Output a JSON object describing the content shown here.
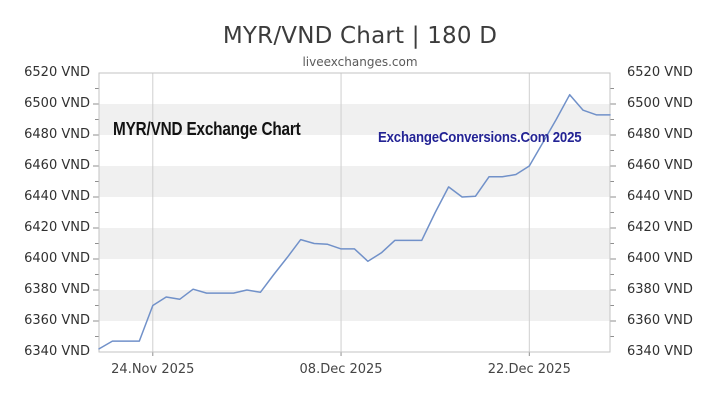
{
  "header": {
    "title": "MYR/VND Chart | 180 D",
    "subtitle": "liveexchanges.com"
  },
  "watermarks": {
    "left": "MYR/VND Exchange Chart",
    "right": "ExchangeConversions.Com 2025"
  },
  "colors": {
    "line": "#7191c9",
    "stripe": "#f0f0f0",
    "grid": "#cfcfcf",
    "border": "#c3c3c3",
    "tick": "#8f8f8f",
    "title": "#3c3c3c",
    "subtitle": "#5a5a5a",
    "watermark_left": "#121212",
    "watermark_right": "#232394"
  },
  "chart_data": {
    "type": "line",
    "title": "MYR/VND Chart | 180 D",
    "xlabel": "",
    "ylabel": "VND",
    "ylim": [
      6340,
      6520
    ],
    "y_major_step": 20,
    "y_minor_step": 10,
    "grid": "horizontal gray stripes every 20 VND, vertical gridlines at labeled dates",
    "legend": "none",
    "y_tick_labels": [
      "6520 VND",
      "6500 VND",
      "6480 VND",
      "6460 VND",
      "6440 VND",
      "6420 VND",
      "6400 VND",
      "6380 VND",
      "6360 VND",
      "6340 VND"
    ],
    "x_tick_labels": [
      "24.Nov 2025",
      "08.Dec 2025",
      "22.Dec 2025"
    ],
    "x_tick_index": [
      4,
      18,
      32
    ],
    "series": [
      {
        "name": "MYR/VND exchange rate",
        "x": [
          "20.Nov",
          "21.Nov",
          "22.Nov",
          "23.Nov",
          "24.Nov",
          "25.Nov",
          "26.Nov",
          "27.Nov",
          "28.Nov",
          "29.Nov",
          "30.Nov",
          "01.Dec",
          "02.Dec",
          "03.Dec",
          "04.Dec",
          "05.Dec",
          "06.Dec",
          "07.Dec",
          "08.Dec",
          "09.Dec",
          "10.Dec",
          "11.Dec",
          "12.Dec",
          "13.Dec",
          "14.Dec",
          "15.Dec",
          "16.Dec",
          "17.Dec",
          "18.Dec",
          "19.Dec",
          "20.Dec",
          "21.Dec",
          "22.Dec",
          "23.Dec",
          "24.Dec",
          "25.Dec",
          "26.Dec",
          "27.Dec",
          "28.Dec"
        ],
        "values": [
          6342,
          6347,
          6347,
          6347,
          6370,
          6375.5,
          6374,
          6380.5,
          6378,
          6378,
          6378,
          6380,
          6378.5,
          6390,
          6401,
          6412.5,
          6410,
          6409.5,
          6406.5,
          6406.5,
          6398.5,
          6404,
          6412,
          6412,
          6412,
          6430,
          6446.5,
          6440,
          6440.5,
          6453,
          6453,
          6454.5,
          6460,
          6475,
          6490,
          6506,
          6496,
          6493,
          6493
        ]
      }
    ]
  }
}
